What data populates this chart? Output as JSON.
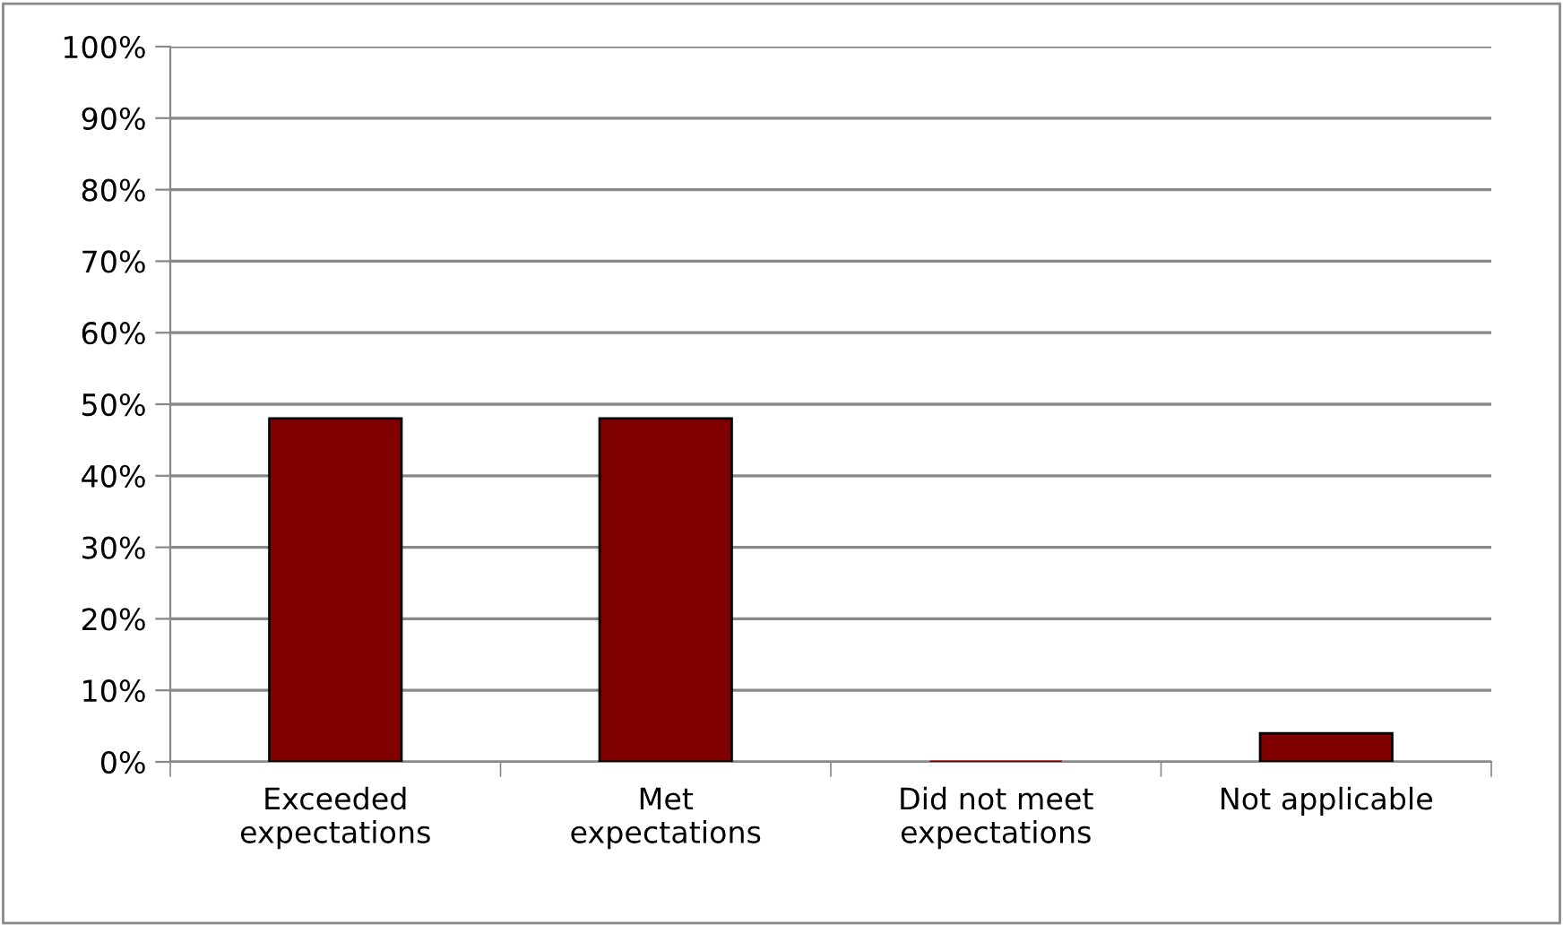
{
  "chart_data": {
    "type": "bar",
    "categories": [
      "Exceeded\nexpectations",
      "Met\nexpectations",
      "Did not meet\nexpectations",
      "Not applicable"
    ],
    "values": [
      48,
      48,
      0,
      4
    ],
    "color": "#800000",
    "ylim": [
      0,
      100
    ],
    "yticks": [
      {
        "value": 0,
        "label": "0%"
      },
      {
        "value": 10,
        "label": "10%"
      },
      {
        "value": 20,
        "label": "20%"
      },
      {
        "value": 30,
        "label": "30%"
      },
      {
        "value": 40,
        "label": "40%"
      },
      {
        "value": 50,
        "label": "50%"
      },
      {
        "value": 60,
        "label": "60%"
      },
      {
        "value": 70,
        "label": "70%"
      },
      {
        "value": 80,
        "label": "80%"
      },
      {
        "value": 90,
        "label": "90%"
      },
      {
        "value": 100,
        "label": "100%"
      }
    ],
    "grid": "y",
    "legend": false
  }
}
